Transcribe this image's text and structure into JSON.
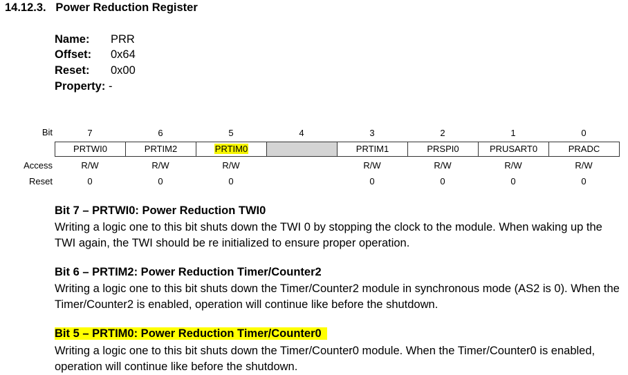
{
  "section": {
    "number": "14.12.3.",
    "title": "Power Reduction Register"
  },
  "meta": {
    "name_label": "Name:",
    "name_value": "PRR",
    "offset_label": "Offset:",
    "offset_value": "0x64",
    "reset_label": "Reset:",
    "reset_value": "0x00",
    "property_label": "Property:",
    "property_value": "-"
  },
  "register": {
    "row_labels": {
      "bit": "Bit",
      "access": "Access",
      "reset": "Reset"
    },
    "bits": [
      {
        "num": "7",
        "name": "PRTWI0",
        "access": "R/W",
        "reset": "0"
      },
      {
        "num": "6",
        "name": "PRTIM2",
        "access": "R/W",
        "reset": "0"
      },
      {
        "num": "5",
        "name": "PRTIM0",
        "access": "R/W",
        "reset": "0",
        "highlighted": true
      },
      {
        "num": "4",
        "name": "",
        "access": "",
        "reset": "",
        "reserved": true
      },
      {
        "num": "3",
        "name": "PRTIM1",
        "access": "R/W",
        "reset": "0"
      },
      {
        "num": "2",
        "name": "PRSPI0",
        "access": "R/W",
        "reset": "0"
      },
      {
        "num": "1",
        "name": "PRUSART0",
        "access": "R/W",
        "reset": "0"
      },
      {
        "num": "0",
        "name": "PRADC",
        "access": "R/W",
        "reset": "0"
      }
    ]
  },
  "descriptions": [
    {
      "heading": "Bit 7 – PRTWI0:  Power Reduction TWI0",
      "body": "Writing a logic one to this bit shuts down the TWI 0 by stopping the clock to the module. When waking up the TWI again, the TWI should be re initialized to ensure proper operation."
    },
    {
      "heading": "Bit 6 – PRTIM2:  Power Reduction Timer/Counter2",
      "body": "Writing a logic one to this bit shuts down the Timer/Counter2 module in synchronous mode (AS2 is 0). When the Timer/Counter2 is enabled, operation will continue like before the shutdown."
    },
    {
      "heading": "Bit 5 – PRTIM0:  Power Reduction Timer/Counter0",
      "body": "Writing a logic one to this bit shuts down the Timer/Counter0 module. When the Timer/Counter0 is enabled, operation will continue like before the shutdown.",
      "highlighted": true
    }
  ],
  "colors": {
    "highlight": "#ffff00",
    "reserved_fill": "#d4d4d4"
  }
}
